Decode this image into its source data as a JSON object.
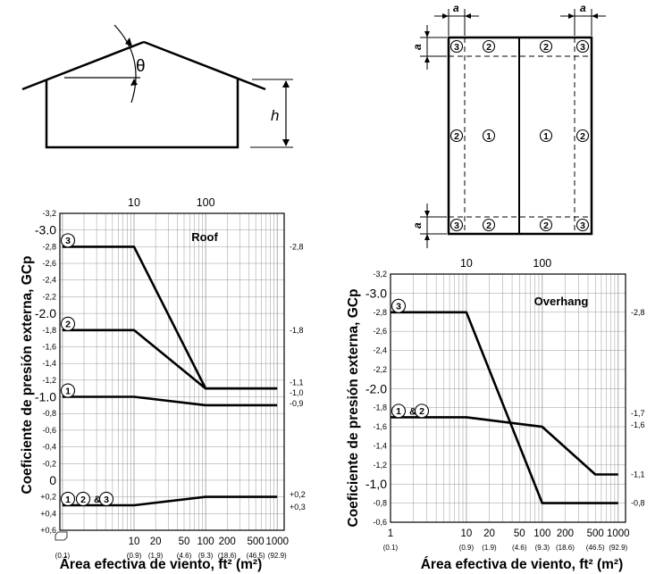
{
  "roof_diagram": {
    "theta": "θ",
    "h": "h"
  },
  "plan_diagram": {
    "dim_a": "a",
    "zone_labels": [
      "1",
      "2",
      "3"
    ]
  },
  "shared": {
    "ylabel": "Coeficiente de presión externa, GCp",
    "xlabel": "Área efectiva de viento, ft² (m²)"
  },
  "chart_data": [
    {
      "type": "line",
      "title": "Roof",
      "x_scale": "log",
      "xlim": [
        0.92,
        1250
      ],
      "ylim": [
        0.6,
        -3.2
      ],
      "y_axis_inverted": true,
      "y_ticks_small": [
        "-3,2",
        "-2,8",
        "-2,6",
        "-2,4",
        "-2,2",
        "-1,8",
        "-1,6",
        "-1,4",
        "-1,2",
        "-0,8",
        "-0,6",
        "-0,4",
        "-0,2",
        "+0,2",
        "+0,4",
        "+0,6"
      ],
      "y_ticks_small_values": [
        -3.2,
        -2.8,
        -2.6,
        -2.4,
        -2.2,
        -1.8,
        -1.6,
        -1.4,
        -1.2,
        -0.8,
        -0.6,
        -0.4,
        -0.2,
        0.2,
        0.4,
        0.6
      ],
      "y_ticks_big": [
        "-3.0",
        "-2.0",
        "-1.0",
        "0"
      ],
      "y_ticks_big_values": [
        -3.0,
        -2.0,
        -1.0,
        0
      ],
      "x_ticks_bottom": [
        "10",
        "20",
        "50",
        "100",
        "200",
        "500",
        "1000"
      ],
      "x_ticks_bottom_values": [
        10,
        20,
        50,
        100,
        200,
        500,
        1000
      ],
      "x_ticks_metric": [
        "(0.1)",
        "(0.9)",
        "(1.9)",
        "(4.6)",
        "(9.3)",
        "(18.6)",
        "(46.5)",
        "(92.9)"
      ],
      "x_ticks_metric_values": [
        1,
        10,
        20,
        50,
        100,
        200,
        500,
        1000
      ],
      "x_ticks_top": [
        "10",
        "100"
      ],
      "x_ticks_top_values": [
        10,
        100
      ],
      "series": [
        {
          "name": "3",
          "x": [
            1,
            10,
            100,
            1000
          ],
          "y": [
            -2.8,
            -2.8,
            -1.1,
            -1.1
          ]
        },
        {
          "name": "2",
          "x": [
            1,
            10,
            100,
            1000
          ],
          "y": [
            -1.8,
            -1.8,
            -1.1,
            -1.1
          ]
        },
        {
          "name": "1",
          "x": [
            1,
            10,
            100,
            1000
          ],
          "y": [
            -1.0,
            -1.0,
            -0.9,
            -0.9
          ]
        },
        {
          "name": "1 2 & 3",
          "x": [
            1,
            10,
            100,
            1000
          ],
          "y": [
            0.3,
            0.3,
            0.2,
            0.2
          ]
        }
      ],
      "series_labels": [
        {
          "parts": [
            "3"
          ],
          "y": -2.8
        },
        {
          "parts": [
            "2"
          ],
          "y": -1.8
        },
        {
          "parts": [
            "1"
          ],
          "y": -1.0
        },
        {
          "parts": [
            "1",
            "2",
            "3"
          ],
          "y": 0.3
        }
      ],
      "right_labels": [
        {
          "text": "-2,8",
          "y": -2.8
        },
        {
          "text": "-1,8",
          "y": -1.8
        },
        {
          "text": "-1,1",
          "y": -1.17
        },
        {
          "text": "-1,0",
          "y": -1.05
        },
        {
          "text": "-0,9",
          "y": -0.92
        },
        {
          "text": "+0,2",
          "y": 0.17
        },
        {
          "text": "+0,3",
          "y": 0.32
        }
      ]
    },
    {
      "type": "line",
      "title": "Overhang",
      "x_scale": "log",
      "xlim": [
        1,
        1250
      ],
      "ylim": [
        -0.6,
        -3.2
      ],
      "y_axis_inverted": true,
      "y_ticks_small": [
        "-3,2",
        "-2,8",
        "-2,6",
        "-2,4",
        "-2,2",
        "-1,8",
        "-1,6",
        "-1,4",
        "-1,2",
        "-0,8",
        "-0,6"
      ],
      "y_ticks_small_values": [
        -3.2,
        -2.8,
        -2.6,
        -2.4,
        -2.2,
        -1.8,
        -1.6,
        -1.4,
        -1.2,
        -0.8,
        -0.6
      ],
      "y_ticks_big": [
        "-3.0",
        "-2.0",
        "-1,0"
      ],
      "y_ticks_big_values": [
        -3.0,
        -2.0,
        -1.0
      ],
      "x_ticks_bottom": [
        "1",
        "10",
        "20",
        "50",
        "100",
        "200",
        "500",
        "1000"
      ],
      "x_ticks_bottom_values": [
        1,
        10,
        20,
        50,
        100,
        200,
        500,
        1000
      ],
      "x_ticks_metric": [
        "(0.1)",
        "(0.9)",
        "(1.9)",
        "(4.6)",
        "(9.3)",
        "(18.6)",
        "(46.5)",
        "(92.9)"
      ],
      "x_ticks_metric_values": [
        1,
        10,
        20,
        50,
        100,
        200,
        500,
        1000
      ],
      "x_ticks_top": [
        "10",
        "100"
      ],
      "x_ticks_top_values": [
        10,
        100
      ],
      "series": [
        {
          "name": "3",
          "x": [
            1,
            10,
            100,
            1000
          ],
          "y": [
            -2.8,
            -2.8,
            -0.8,
            -0.8
          ]
        },
        {
          "name": "1 & 2",
          "x": [
            1,
            10,
            100,
            500,
            1000
          ],
          "y": [
            -1.7,
            -1.7,
            -1.6,
            -1.1,
            -1.1
          ]
        }
      ],
      "series_labels": [
        {
          "parts": [
            "3"
          ],
          "y": -2.8
        },
        {
          "parts": [
            "1",
            "2"
          ],
          "y": -1.7
        }
      ],
      "right_labels": [
        {
          "text": "-2,8",
          "y": -2.8
        },
        {
          "text": "-1,7",
          "y": -1.74
        },
        {
          "text": "-1,6",
          "y": -1.62
        },
        {
          "text": "-1,1",
          "y": -1.1
        },
        {
          "text": "-0,8",
          "y": -0.8
        }
      ]
    }
  ]
}
